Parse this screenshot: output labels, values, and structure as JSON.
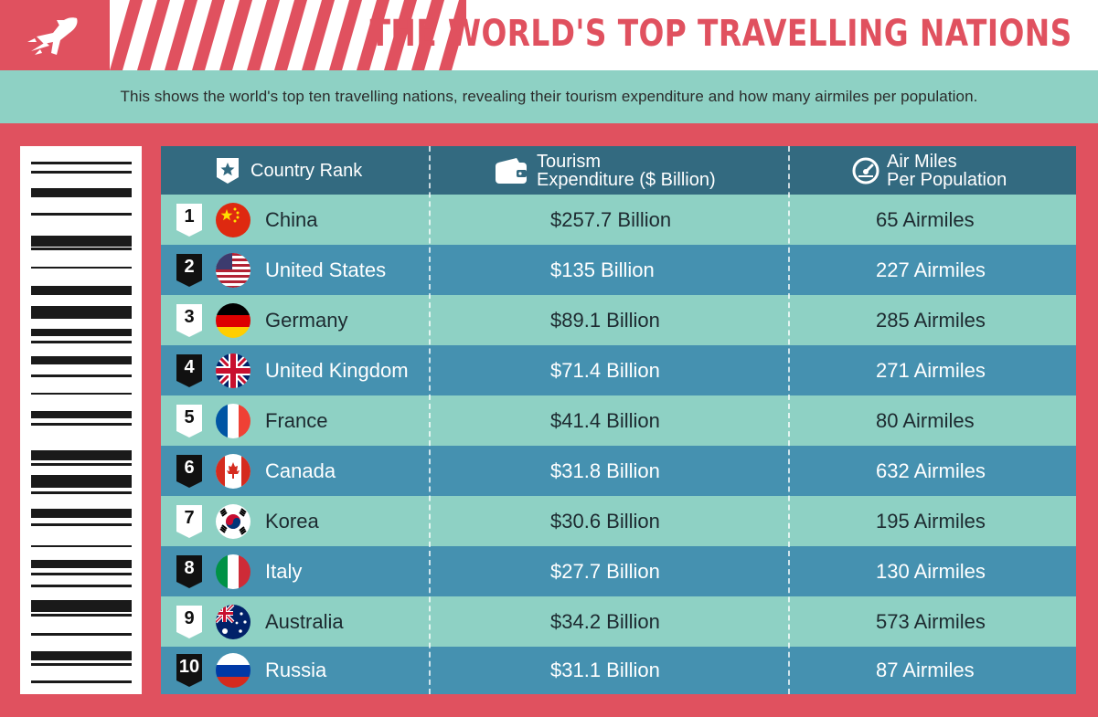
{
  "header": {
    "title": "THE WORLD'S TOP TRAVELLING NATIONS",
    "subtitle": "This shows the world's top ten travelling nations, revealing their tourism expenditure and how many airmiles per population.",
    "logo_icon": "airplane-icon"
  },
  "colors": {
    "accent_red": "#e0515f",
    "teal_light": "#8ed1c4",
    "blue_row": "#4591b0",
    "header_blue": "#336a80"
  },
  "table": {
    "columns": {
      "country": "Country Rank",
      "tourism_line1": "Tourism",
      "tourism_line2": "Expenditure ($ Billion)",
      "airmiles_line1": "Air Miles",
      "airmiles_line2": "Per Population"
    },
    "column_icons": [
      "star-badge-icon",
      "wallet-icon",
      "gauge-icon"
    ],
    "rows": [
      {
        "rank": "1",
        "country": "China",
        "flag": "china-flag-icon",
        "expenditure": "$257.7 Billion",
        "airmiles": "65 Airmiles"
      },
      {
        "rank": "2",
        "country": "United States",
        "flag": "united-states-flag-icon",
        "expenditure": "$135 Billion",
        "airmiles": "227 Airmiles"
      },
      {
        "rank": "3",
        "country": "Germany",
        "flag": "germany-flag-icon",
        "expenditure": "$89.1 Billion",
        "airmiles": "285 Airmiles"
      },
      {
        "rank": "4",
        "country": "United Kingdom",
        "flag": "united-kingdom-flag-icon",
        "expenditure": "$71.4 Billion",
        "airmiles": "271 Airmiles"
      },
      {
        "rank": "5",
        "country": "France",
        "flag": "france-flag-icon",
        "expenditure": "$41.4 Billion",
        "airmiles": "80 Airmiles"
      },
      {
        "rank": "6",
        "country": "Canada",
        "flag": "canada-flag-icon",
        "expenditure": "$31.8 Billion",
        "airmiles": "632 Airmiles"
      },
      {
        "rank": "7",
        "country": "Korea",
        "flag": "korea-flag-icon",
        "expenditure": "$30.6 Billion",
        "airmiles": "195 Airmiles"
      },
      {
        "rank": "8",
        "country": "Italy",
        "flag": "italy-flag-icon",
        "expenditure": "$27.7 Billion",
        "airmiles": "130 Airmiles"
      },
      {
        "rank": "9",
        "country": "Australia",
        "flag": "australia-flag-icon",
        "expenditure": "$34.2 Billion",
        "airmiles": "573 Airmiles"
      },
      {
        "rank": "10",
        "country": "Russia",
        "flag": "russia-flag-icon",
        "expenditure": "$31.1 Billion",
        "airmiles": "87 Airmiles"
      }
    ]
  },
  "chart_data": {
    "type": "table",
    "title": "THE WORLD'S TOP TRAVELLING NATIONS",
    "subtitle": "This shows the world's top ten travelling nations, revealing their tourism expenditure and how many airmiles per population.",
    "columns": [
      "Country Rank",
      "Tourism Expenditure ($ Billion)",
      "Air Miles Per Population"
    ],
    "categories": [
      "China",
      "United States",
      "Germany",
      "United Kingdom",
      "France",
      "Canada",
      "Korea",
      "Italy",
      "Australia",
      "Russia"
    ],
    "ranks": [
      1,
      2,
      3,
      4,
      5,
      6,
      7,
      8,
      9,
      10
    ],
    "series": [
      {
        "name": "Tourism Expenditure ($ Billion)",
        "values": [
          257.7,
          135,
          89.1,
          71.4,
          41.4,
          31.8,
          30.6,
          27.7,
          34.2,
          31.1
        ]
      },
      {
        "name": "Air Miles Per Population",
        "values": [
          65,
          227,
          285,
          271,
          80,
          632,
          195,
          130,
          573,
          87
        ]
      }
    ]
  }
}
